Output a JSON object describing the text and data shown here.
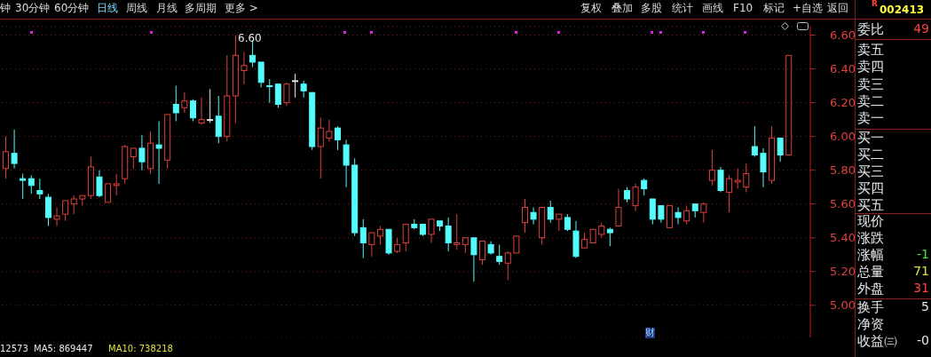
{
  "chart_data": {
    "type": "candlestick",
    "categories": [
      null,
      null,
      null,
      null,
      null,
      null,
      null,
      null,
      null,
      null,
      null,
      null,
      null,
      null,
      null,
      null,
      null,
      null,
      null,
      null,
      null,
      null,
      null,
      null,
      null,
      null,
      null,
      null,
      null,
      null,
      null,
      null,
      null,
      null,
      null,
      null,
      null,
      null,
      null,
      null,
      null,
      null,
      null,
      null,
      null,
      null,
      null,
      null,
      null,
      null,
      null,
      null,
      null,
      null,
      null,
      null,
      null,
      null,
      null,
      null,
      null,
      null,
      null,
      null,
      null,
      null,
      null,
      null,
      null,
      null,
      null,
      null,
      null,
      null,
      null,
      null,
      null,
      null,
      null,
      null,
      null,
      null,
      null,
      null,
      null,
      null,
      null,
      null,
      null,
      null,
      null,
      null,
      null
    ],
    "ohlc": [
      [
        5.81,
        6.0,
        5.75,
        5.91
      ],
      [
        5.9,
        6.04,
        5.81,
        5.84
      ],
      [
        5.75,
        5.78,
        5.63,
        5.74
      ],
      [
        5.75,
        5.77,
        5.66,
        5.71
      ],
      [
        5.68,
        5.75,
        5.63,
        5.66
      ],
      [
        5.64,
        5.66,
        5.47,
        5.52
      ],
      [
        5.51,
        5.58,
        5.47,
        5.53
      ],
      [
        5.54,
        5.62,
        5.5,
        5.62
      ],
      [
        5.6,
        5.65,
        5.54,
        5.63
      ],
      [
        5.63,
        5.65,
        5.59,
        5.65
      ],
      [
        5.65,
        5.88,
        5.63,
        5.82
      ],
      [
        5.76,
        5.8,
        5.64,
        5.65
      ],
      [
        5.61,
        5.72,
        5.61,
        5.72
      ],
      [
        5.71,
        5.78,
        5.65,
        5.72
      ],
      [
        5.75,
        5.95,
        5.72,
        5.94
      ],
      [
        5.88,
        5.93,
        5.81,
        5.93
      ],
      [
        5.93,
        6.01,
        5.8,
        5.85
      ],
      [
        5.81,
        6.03,
        5.78,
        5.96
      ],
      [
        5.95,
        6.09,
        5.72,
        5.93
      ],
      [
        5.86,
        6.13,
        5.81,
        6.13
      ],
      [
        6.19,
        6.3,
        6.09,
        6.14
      ],
      [
        6.17,
        6.26,
        6.14,
        6.21
      ],
      [
        6.21,
        6.22,
        6.09,
        6.11
      ],
      [
        6.08,
        6.23,
        6.07,
        6.1
      ],
      [
        6.1,
        6.28,
        6.08,
        6.1
      ],
      [
        6.12,
        6.24,
        5.96,
        6.0
      ],
      [
        6.0,
        6.48,
        5.97,
        6.24
      ],
      [
        6.24,
        6.6,
        6.08,
        6.48
      ],
      [
        6.39,
        6.5,
        6.31,
        6.42
      ],
      [
        6.48,
        6.57,
        6.41,
        6.44
      ],
      [
        6.44,
        6.44,
        6.29,
        6.32
      ],
      [
        6.3,
        6.34,
        6.2,
        6.3
      ],
      [
        6.31,
        6.31,
        6.17,
        6.19
      ],
      [
        6.2,
        6.32,
        6.18,
        6.31
      ],
      [
        6.33,
        6.37,
        6.23,
        6.33
      ],
      [
        6.31,
        6.33,
        6.23,
        6.27
      ],
      [
        6.26,
        6.26,
        5.92,
        5.94
      ],
      [
        5.94,
        6.11,
        5.75,
        6.05
      ],
      [
        5.99,
        6.1,
        5.97,
        6.03
      ],
      [
        6.05,
        6.06,
        5.92,
        5.98
      ],
      [
        5.95,
        5.98,
        5.7,
        5.83
      ],
      [
        5.83,
        5.87,
        5.41,
        5.43
      ],
      [
        5.46,
        5.51,
        5.28,
        5.37
      ],
      [
        5.36,
        5.43,
        5.29,
        5.43
      ],
      [
        5.41,
        5.47,
        5.36,
        5.45
      ],
      [
        5.45,
        5.45,
        5.3,
        5.31
      ],
      [
        5.32,
        5.4,
        5.31,
        5.36
      ],
      [
        5.37,
        5.48,
        5.32,
        5.48
      ],
      [
        5.48,
        5.51,
        5.45,
        5.46
      ],
      [
        5.48,
        5.48,
        5.41,
        5.42
      ],
      [
        5.42,
        5.51,
        5.37,
        5.51
      ],
      [
        5.5,
        5.5,
        5.44,
        5.47
      ],
      [
        5.47,
        5.52,
        5.32,
        5.37
      ],
      [
        5.36,
        5.54,
        5.33,
        5.37
      ],
      [
        5.36,
        5.4,
        5.31,
        5.4
      ],
      [
        5.4,
        5.4,
        5.14,
        5.3
      ],
      [
        5.27,
        5.38,
        5.24,
        5.38
      ],
      [
        5.36,
        5.38,
        5.3,
        5.31
      ],
      [
        5.29,
        5.36,
        5.24,
        5.26
      ],
      [
        5.25,
        5.32,
        5.15,
        5.31
      ],
      [
        5.31,
        5.41,
        5.31,
        5.41
      ],
      [
        5.49,
        5.63,
        5.43,
        5.58
      ],
      [
        5.55,
        5.58,
        5.48,
        5.51
      ],
      [
        5.4,
        5.58,
        5.36,
        5.58
      ],
      [
        5.58,
        5.62,
        5.49,
        5.51
      ],
      [
        5.51,
        5.54,
        5.44,
        5.54
      ],
      [
        5.52,
        5.54,
        5.44,
        5.45
      ],
      [
        5.44,
        5.5,
        5.28,
        5.29
      ],
      [
        5.34,
        5.43,
        5.34,
        5.39
      ],
      [
        5.37,
        5.45,
        5.37,
        5.45
      ],
      [
        5.42,
        5.49,
        5.4,
        5.47
      ],
      [
        5.45,
        5.46,
        5.35,
        5.43
      ],
      [
        5.47,
        5.69,
        5.47,
        5.58
      ],
      [
        5.68,
        5.7,
        5.61,
        5.63
      ],
      [
        5.59,
        5.72,
        5.56,
        5.7
      ],
      [
        5.74,
        5.75,
        5.65,
        5.69
      ],
      [
        5.63,
        5.63,
        5.48,
        5.51
      ],
      [
        5.59,
        5.59,
        5.49,
        5.51
      ],
      [
        5.46,
        5.59,
        5.46,
        5.59
      ],
      [
        5.55,
        5.58,
        5.48,
        5.52
      ],
      [
        5.5,
        5.59,
        5.48,
        5.56
      ],
      [
        5.6,
        5.6,
        5.52,
        5.56
      ],
      [
        5.55,
        5.61,
        5.49,
        5.6
      ],
      [
        5.74,
        5.92,
        5.71,
        5.8
      ],
      [
        5.8,
        5.82,
        5.67,
        5.68
      ],
      [
        5.67,
        5.77,
        5.55,
        5.75
      ],
      [
        5.73,
        5.81,
        5.69,
        5.74
      ],
      [
        5.7,
        5.84,
        5.67,
        5.78
      ],
      [
        5.94,
        6.06,
        5.88,
        5.89
      ],
      [
        5.9,
        5.93,
        5.7,
        5.79
      ],
      [
        5.74,
        6.06,
        5.72,
        5.99
      ],
      [
        5.99,
        5.99,
        5.85,
        5.89
      ],
      [
        5.89,
        6.48,
        5.89,
        6.48
      ]
    ],
    "colors": [
      "#e0403c",
      "#54fcfc",
      "#54fcfc",
      "#54fcfc",
      "#54fcfc",
      "#54fcfc",
      "#e0403c",
      "#e0403c",
      "#e0403c",
      "#e0403c",
      "#e0403c",
      "#54fcfc",
      "#e0403c",
      "#e0403c",
      "#e0403c",
      "#e0403c",
      "#54fcfc",
      "#e0403c",
      "#54fcfc",
      "#e0403c",
      "#54fcfc",
      "#e0403c",
      "#54fcfc",
      "#e0403c",
      "#e6e6e6",
      "#54fcfc",
      "#e0403c",
      "#e0403c",
      "#e0403c",
      "#54fcfc",
      "#54fcfc",
      "#54fcfc",
      "#54fcfc",
      "#e0403c",
      "#e6e6e6",
      "#54fcfc",
      "#54fcfc",
      "#e0403c",
      "#e0403c",
      "#54fcfc",
      "#54fcfc",
      "#54fcfc",
      "#54fcfc",
      "#e0403c",
      "#e0403c",
      "#54fcfc",
      "#e0403c",
      "#e0403c",
      "#54fcfc",
      "#54fcfc",
      "#e0403c",
      "#54fcfc",
      "#54fcfc",
      "#e0403c",
      "#e0403c",
      "#54fcfc",
      "#e0403c",
      "#54fcfc",
      "#54fcfc",
      "#e0403c",
      "#e0403c",
      "#e0403c",
      "#54fcfc",
      "#e0403c",
      "#54fcfc",
      "#e0403c",
      "#54fcfc",
      "#54fcfc",
      "#e0403c",
      "#e0403c",
      "#e0403c",
      "#54fcfc",
      "#e0403c",
      "#54fcfc",
      "#e0403c",
      "#54fcfc",
      "#54fcfc",
      "#54fcfc",
      "#e0403c",
      "#54fcfc",
      "#e0403c",
      "#54fcfc",
      "#e0403c",
      "#e0403c",
      "#54fcfc",
      "#e0403c",
      "#e0403c",
      "#e0403c",
      "#54fcfc",
      "#54fcfc",
      "#e0403c",
      "#54fcfc",
      "#e0403c"
    ],
    "ylim": [
      4.81,
      6.65
    ],
    "yticks": [
      {
        "value": 5.0,
        "label": "5.00"
      },
      {
        "value": 5.2,
        "label": "5.20"
      },
      {
        "value": 5.4,
        "label": "5.40"
      },
      {
        "value": 5.6,
        "label": "5.60"
      },
      {
        "value": 5.8,
        "label": "5.80"
      },
      {
        "value": 6.0,
        "label": "6.00"
      },
      {
        "value": 6.2,
        "label": "6.20"
      },
      {
        "value": 6.4,
        "label": "6.40"
      },
      {
        "value": 6.6,
        "label": "6.60"
      }
    ],
    "grid": "y",
    "tick_labels": "y",
    "annotations": [
      "钟",
      "30分钟",
      "60分钟",
      "日线",
      "周线",
      "月线",
      "多周期",
      "更多 >",
      "复权",
      "叠加",
      "多股",
      "统计",
      "画线",
      "F10",
      "标记",
      "+自选",
      "返回",
      "R",
      "002413",
      "委比",
      "49",
      "卖五",
      "卖四",
      "卖三",
      "卖二",
      "卖一",
      "买一",
      "买二",
      "买三",
      "买四",
      "买五",
      "现价",
      "涨跌",
      "涨幅",
      "-1",
      "总量",
      "71",
      "外盘",
      "31",
      "换手",
      "5",
      "净资",
      "收益㈢",
      "-0",
      "12573",
      "MA5: 869447",
      "MA10: 738218",
      "财",
      "6.60"
    ]
  }
}
